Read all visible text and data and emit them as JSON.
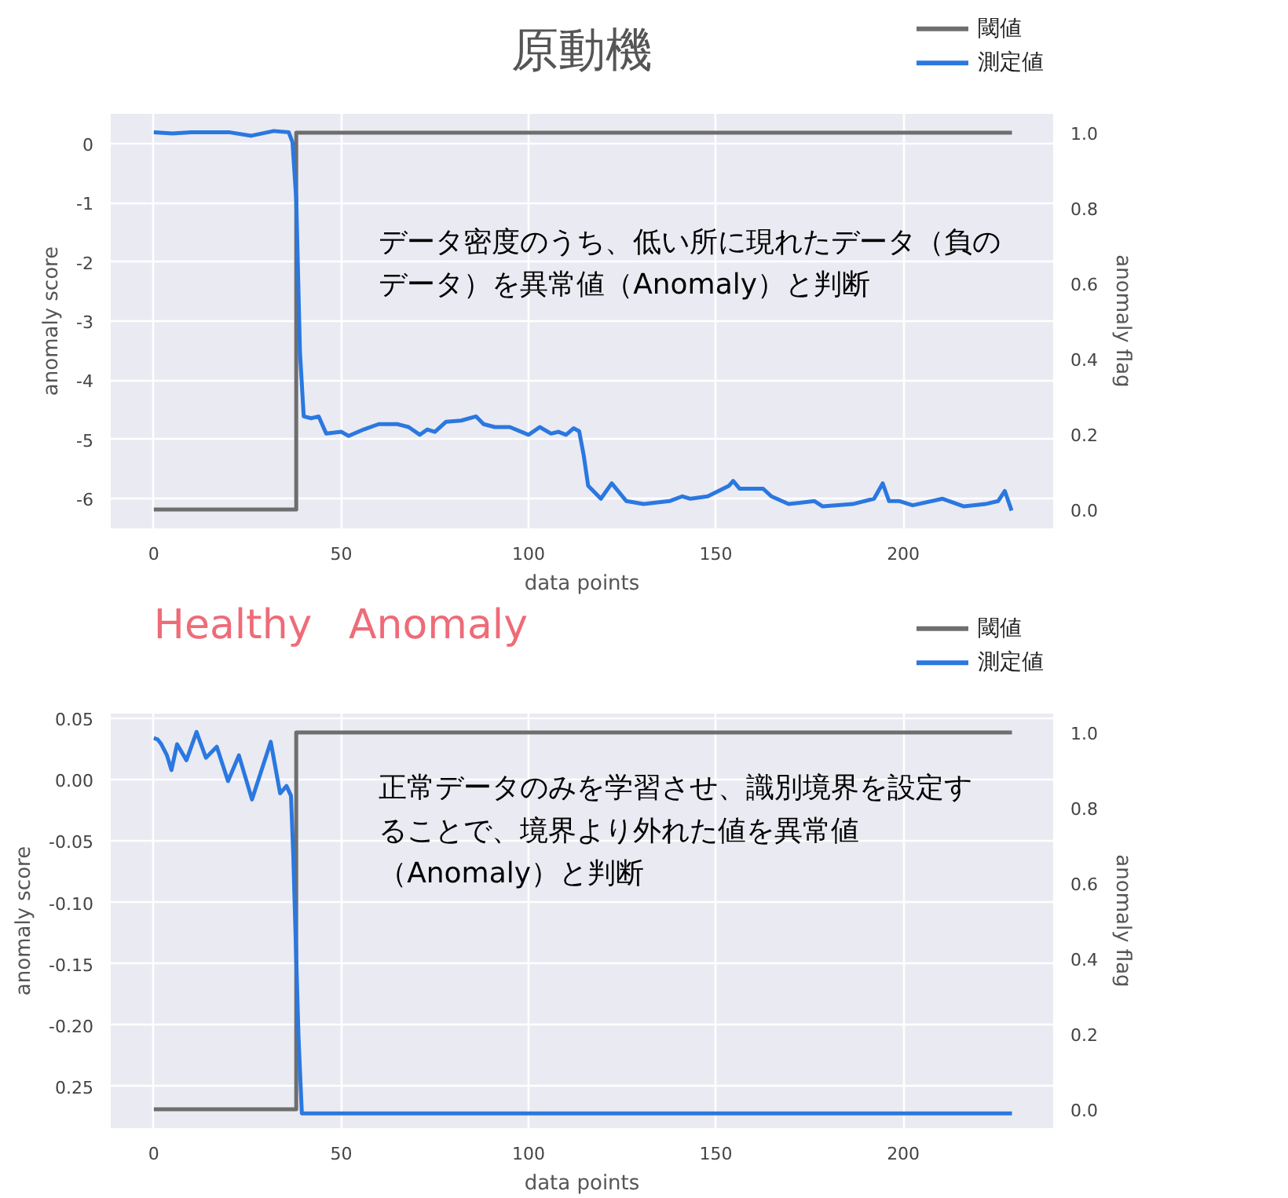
{
  "chart_data": [
    {
      "type": "line",
      "title": "原動機",
      "xlabel": "data points",
      "ylabel": "anomaly score",
      "y2label": "anomaly flag",
      "series": [
        {
          "name": "閾値",
          "color": "#6e6e6e",
          "axis": "y2",
          "x": [
            0,
            38,
            38,
            229
          ],
          "values": [
            0,
            0,
            1,
            1
          ]
        },
        {
          "name": "測定値",
          "color": "#2a78e0",
          "x": [
            0,
            5,
            10,
            20,
            26,
            32,
            36,
            37,
            38,
            39,
            40,
            42,
            44,
            46,
            50,
            52,
            56,
            60,
            65,
            68,
            71,
            73,
            75,
            78,
            82,
            86,
            88,
            91,
            95,
            100,
            103,
            106,
            108,
            110,
            112,
            113.5,
            114.7,
            115.9,
            119.3,
            122.2,
            126.1,
            130.7,
            137.6,
            141,
            143.2,
            147.8,
            153.5,
            154.6,
            156.3,
            162.6,
            164.8,
            169.4,
            176.3,
            178.5,
            186.5,
            192.2,
            194.5,
            196.2,
            199,
            202.5,
            210.5,
            216.2,
            221.9,
            225.3,
            227.1,
            228.9
          ],
          "values": [
            0.19,
            0.17,
            0.19,
            0.19,
            0.13,
            0.21,
            0.19,
            0.02,
            -0.94,
            -3.53,
            -4.61,
            -4.64,
            -4.61,
            -4.9,
            -4.87,
            -4.94,
            -4.83,
            -4.74,
            -4.74,
            -4.79,
            -4.92,
            -4.83,
            -4.87,
            -4.7,
            -4.68,
            -4.61,
            -4.74,
            -4.79,
            -4.79,
            -4.92,
            -4.79,
            -4.9,
            -4.87,
            -4.92,
            -4.81,
            -4.86,
            -5.26,
            -5.78,
            -6.0,
            -5.74,
            -6.04,
            -6.09,
            -6.04,
            -5.96,
            -6.0,
            -5.96,
            -5.78,
            -5.7,
            -5.83,
            -5.83,
            -5.96,
            -6.09,
            -6.04,
            -6.13,
            -6.09,
            -6.0,
            -5.74,
            -6.04,
            -6.04,
            -6.11,
            -6.0,
            -6.13,
            -6.09,
            -6.04,
            -5.87,
            -6.2
          ]
        }
      ],
      "xlim": [
        -11.5,
        240
      ],
      "xticks": [
        0,
        50,
        100,
        150,
        200
      ],
      "ylim": [
        -6.5,
        0.5
      ],
      "yticks": [
        -6,
        -5,
        -4,
        -3,
        -2,
        -1,
        0
      ],
      "y2lim": [
        -0.05,
        1.05
      ],
      "y2ticks": [
        {
          "value": 0,
          "label": "0.0"
        },
        {
          "value": 0.2,
          "label": "0.2"
        },
        {
          "value": 0.4,
          "label": "0.4"
        },
        {
          "value": 0.6,
          "label": "0.6"
        },
        {
          "value": 0.8,
          "label": "0.8"
        },
        {
          "value": 1,
          "label": "1.0"
        }
      ],
      "grid": true,
      "legend": "top right",
      "annotations": [
        "データ密度のうち、低い所に現れたデータ（負のデータ）を異常値（Anomaly）と判断"
      ]
    },
    {
      "type": "line",
      "xlabel": "data points",
      "ylabel": "anomaly score",
      "y2label": "anomaly flag",
      "series": [
        {
          "name": "閾値",
          "color": "#6e6e6e",
          "axis": "y2",
          "x": [
            0,
            38,
            38,
            229
          ],
          "values": [
            0,
            0,
            1,
            1
          ]
        },
        {
          "name": "測定値",
          "color": "#2a78e0",
          "x": [
            0,
            1,
            2,
            3.5,
            4.7,
            6.2,
            8.7,
            11.4,
            13.9,
            16.8,
            19.8,
            22.7,
            26.2,
            31.2,
            33.7,
            35.4,
            36.6,
            37.2,
            37.8,
            38.6,
            39.5,
            229
          ],
          "values": [
            0.034,
            0.033,
            0.029,
            0.02,
            0.008,
            0.029,
            0.016,
            0.039,
            0.018,
            0.027,
            -0.001,
            0.02,
            -0.016,
            0.031,
            -0.011,
            -0.005,
            -0.013,
            -0.06,
            -0.124,
            -0.209,
            -0.272,
            -0.272
          ]
        }
      ],
      "xlim": [
        -11.5,
        240
      ],
      "xticks": [
        0,
        50,
        100,
        150,
        200
      ],
      "ylim": [
        -0.284,
        0.054
      ],
      "yticks": [
        {
          "value": -0.25,
          "label": "0.25"
        },
        {
          "value": -0.2,
          "label": "-0.20"
        },
        {
          "value": -0.15,
          "label": "-0.15"
        },
        {
          "value": -0.1,
          "label": "-0.10"
        },
        {
          "value": -0.05,
          "label": "-0.05"
        },
        {
          "value": 0,
          "label": "0.00"
        },
        {
          "value": 0.05,
          "label": "0.05"
        }
      ],
      "y2lim": [
        -0.05,
        1.05
      ],
      "y2ticks": [
        {
          "value": 0,
          "label": "0.0"
        },
        {
          "value": 0.2,
          "label": "0.2"
        },
        {
          "value": 0.4,
          "label": "0.4"
        },
        {
          "value": 0.6,
          "label": "0.6"
        },
        {
          "value": 0.8,
          "label": "0.8"
        },
        {
          "value": 1,
          "label": "1.0"
        }
      ],
      "grid": true,
      "legend": "top right",
      "annotations": [
        "Healthy",
        "Anomaly",
        "正常データのみを学習させ、識別境界を設定することで、境界より外れた値を異常値（Anomaly）と判断"
      ]
    }
  ]
}
